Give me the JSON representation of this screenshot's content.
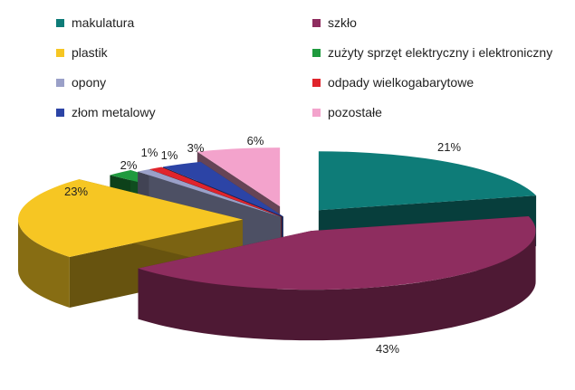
{
  "chart_data": {
    "type": "pie",
    "title": "",
    "legend_position": "top",
    "slices": [
      {
        "label": "makulatura",
        "value": 21,
        "display": "21%",
        "color": "#0e7c78"
      },
      {
        "label": "szkło",
        "value": 43,
        "display": "43%",
        "color": "#8e2d5f"
      },
      {
        "label": "plastik",
        "value": 23,
        "display": "23%",
        "color": "#f6c623"
      },
      {
        "label": "zużyty sprzęt elektryczny i elektroniczny",
        "value": 2,
        "display": "2%",
        "color": "#1f9a3e"
      },
      {
        "label": "opony",
        "value": 1,
        "display": "1%",
        "color": "#9aa0c8"
      },
      {
        "label": "odpady wielkogabarytowe",
        "value": 1,
        "display": "1%",
        "color": "#e0242c"
      },
      {
        "label": "złom metalowy",
        "value": 3,
        "display": "3%",
        "color": "#2c44a6"
      },
      {
        "label": "pozostałe",
        "value": 6,
        "display": "6%",
        "color": "#f3a3cc"
      }
    ]
  }
}
